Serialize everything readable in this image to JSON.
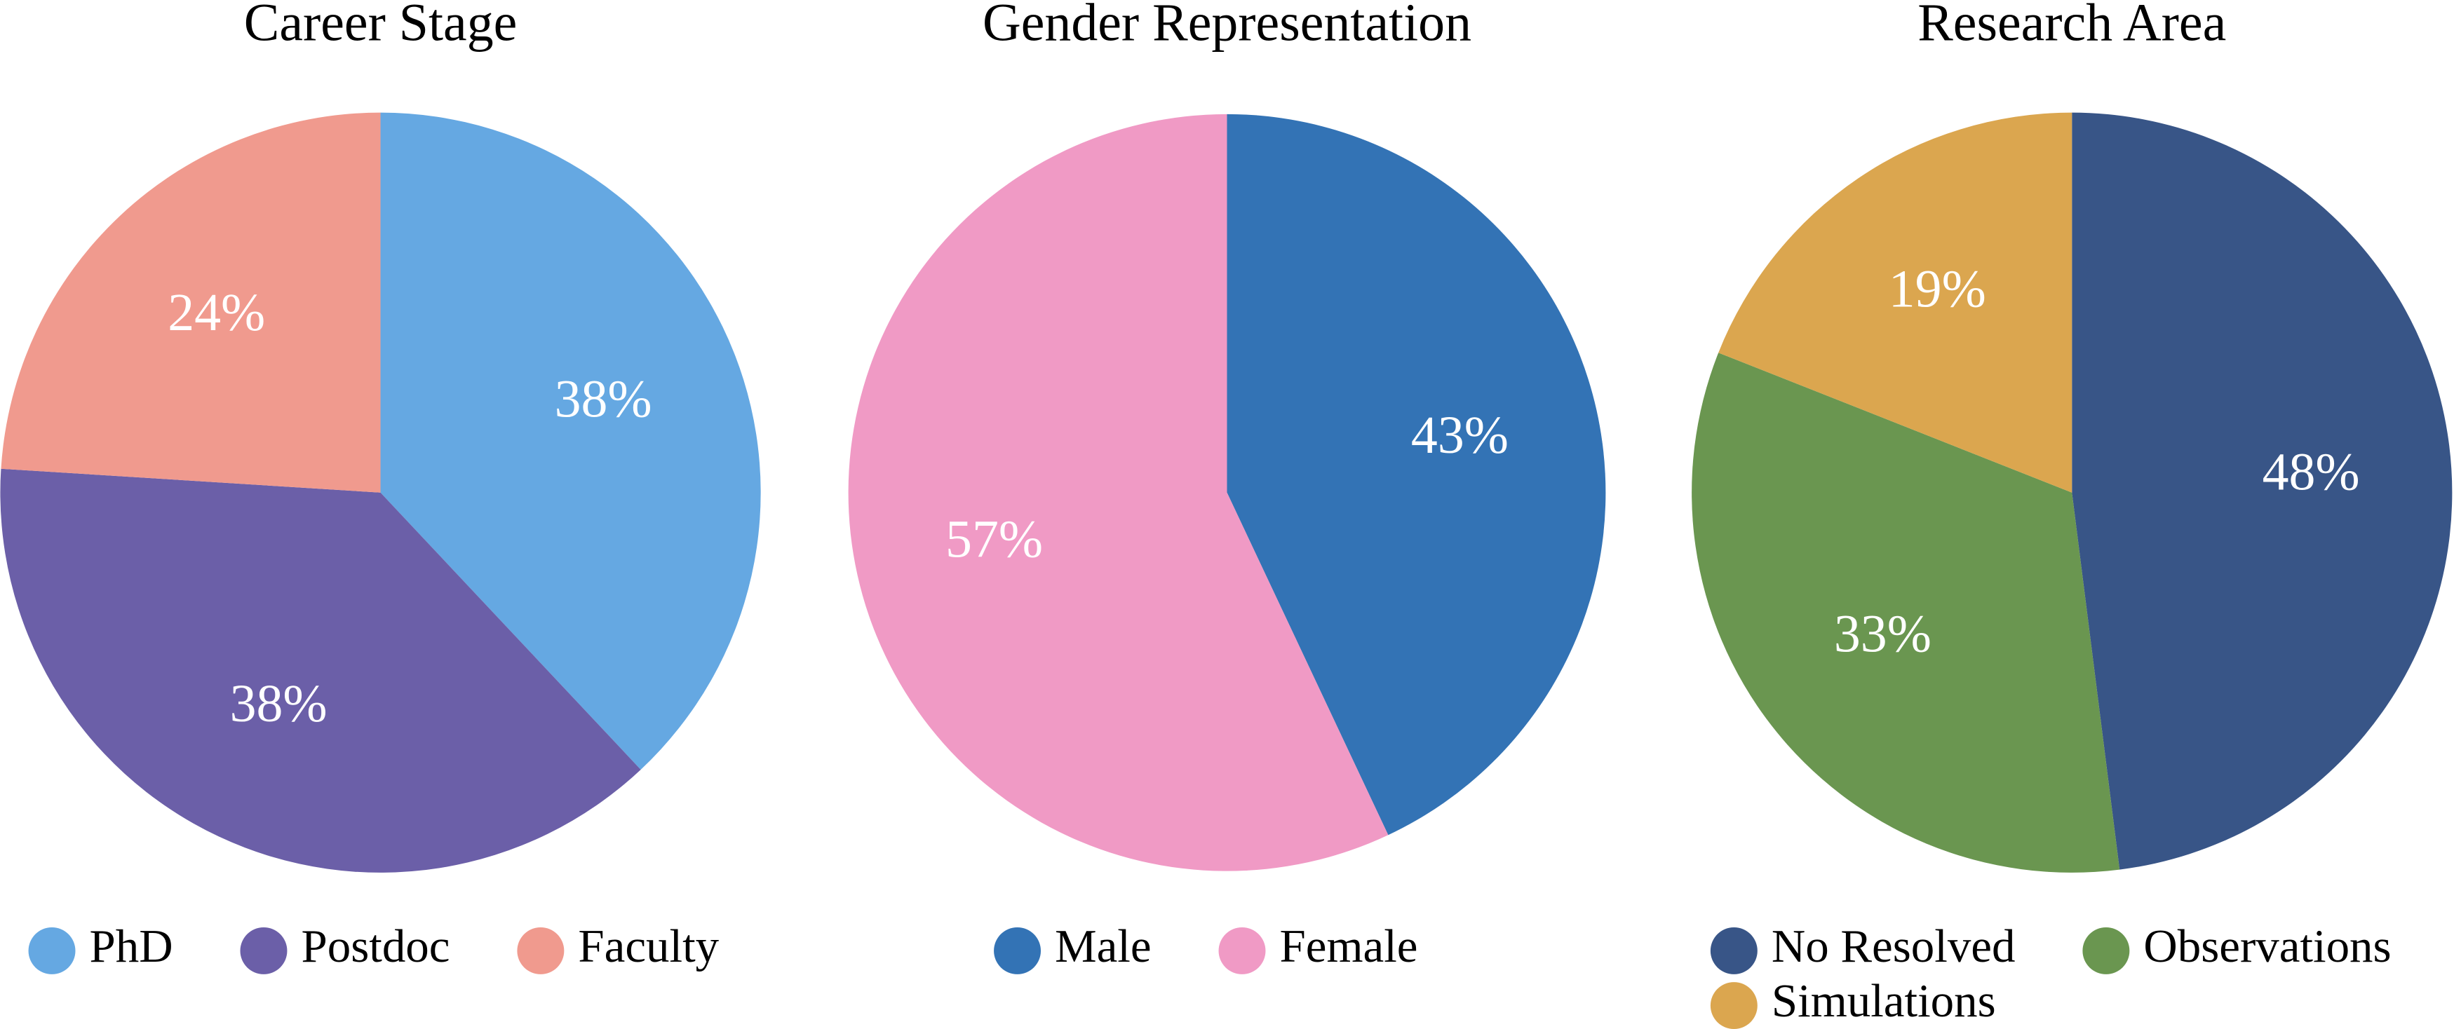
{
  "chart_data": [
    {
      "type": "pie",
      "title": "Career Stage",
      "categories": [
        "PhD",
        "Postdoc",
        "Faculty"
      ],
      "values": [
        38,
        38,
        24
      ],
      "value_labels": [
        "38%",
        "38%",
        "24%"
      ],
      "colors": [
        "#65a8e2",
        "#6b5fa8",
        "#f09a8e"
      ],
      "legend": "bottom"
    },
    {
      "type": "pie",
      "title": "Gender Representation",
      "categories": [
        "Male",
        "Female"
      ],
      "values": [
        43,
        57
      ],
      "value_labels": [
        "43%",
        "57%"
      ],
      "colors": [
        "#3373b5",
        "#f09ac5"
      ],
      "legend": "bottom"
    },
    {
      "type": "pie",
      "title": "Research Area",
      "categories": [
        "No Resolved",
        "Observations",
        "Simulations"
      ],
      "values": [
        48,
        33,
        19
      ],
      "value_labels": [
        "48%",
        "33%",
        "19%"
      ],
      "colors": [
        "#385587",
        "#6a9650",
        "#dba64f"
      ],
      "legend": "bottom"
    }
  ]
}
